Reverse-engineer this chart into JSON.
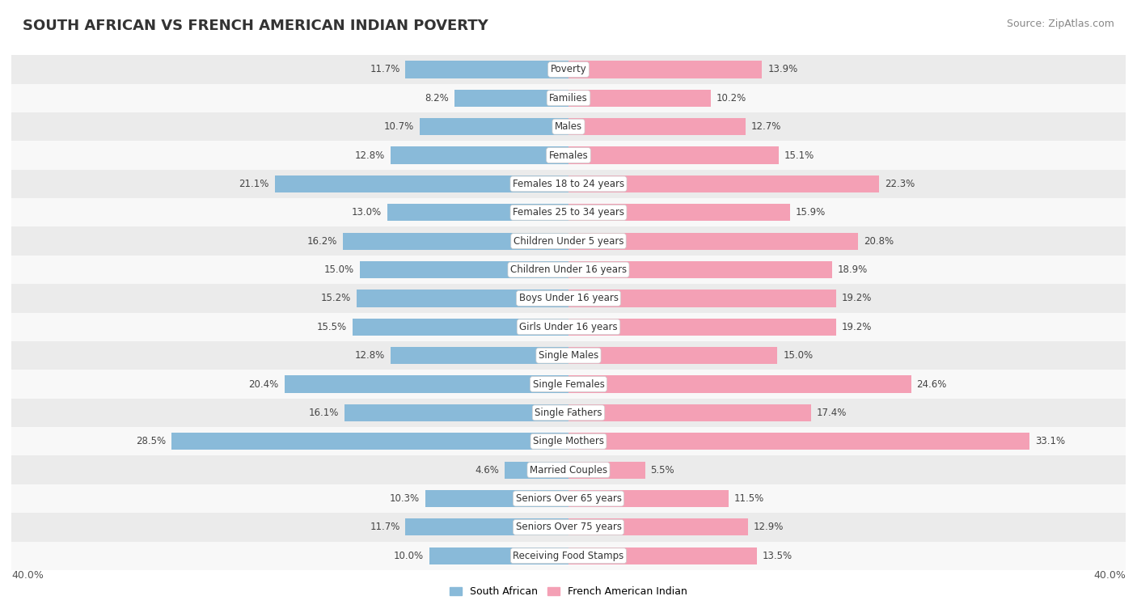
{
  "title": "SOUTH AFRICAN VS FRENCH AMERICAN INDIAN POVERTY",
  "source": "Source: ZipAtlas.com",
  "categories": [
    "Poverty",
    "Families",
    "Males",
    "Females",
    "Females 18 to 24 years",
    "Females 25 to 34 years",
    "Children Under 5 years",
    "Children Under 16 years",
    "Boys Under 16 years",
    "Girls Under 16 years",
    "Single Males",
    "Single Females",
    "Single Fathers",
    "Single Mothers",
    "Married Couples",
    "Seniors Over 65 years",
    "Seniors Over 75 years",
    "Receiving Food Stamps"
  ],
  "south_african": [
    11.7,
    8.2,
    10.7,
    12.8,
    21.1,
    13.0,
    16.2,
    15.0,
    15.2,
    15.5,
    12.8,
    20.4,
    16.1,
    28.5,
    4.6,
    10.3,
    11.7,
    10.0
  ],
  "french_american_indian": [
    13.9,
    10.2,
    12.7,
    15.1,
    22.3,
    15.9,
    20.8,
    18.9,
    19.2,
    19.2,
    15.0,
    24.6,
    17.4,
    33.1,
    5.5,
    11.5,
    12.9,
    13.5
  ],
  "blue_color": "#89BAD9",
  "pink_color": "#F4A0B5",
  "bg_row_light": "#EBEBEB",
  "bg_row_white": "#F8F8F8",
  "axis_max": 40.0,
  "legend_blue": "South African",
  "legend_pink": "French American Indian",
  "title_fontsize": 13,
  "source_fontsize": 9,
  "label_fontsize": 8.5,
  "cat_fontsize": 8.5,
  "bar_height": 0.6
}
